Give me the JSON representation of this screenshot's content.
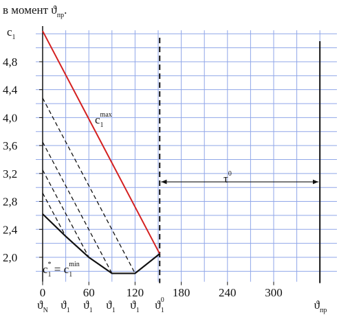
{
  "chart_data": {
    "type": "line",
    "title": [
      {
        "base": "в момент ϑ",
        "sub": "пр"
      },
      {
        "base": "."
      }
    ],
    "y_label": [
      {
        "base": "c",
        "sub": "1"
      }
    ],
    "xlim": [
      0,
      380
    ],
    "ylim": [
      1.65,
      5.25
    ],
    "xticks": [
      0,
      60,
      120,
      180,
      240,
      300
    ],
    "yticks": [
      {
        "value": 2.0,
        "label": "2,0"
      },
      {
        "value": 2.4,
        "label": "2,4"
      },
      {
        "value": 2.8,
        "label": "2,8"
      },
      {
        "value": 3.2,
        "label": "3,2"
      },
      {
        "value": 3.6,
        "label": "3,6"
      },
      {
        "value": 4.0,
        "label": "4,0"
      },
      {
        "value": 4.4,
        "label": "4,4"
      },
      {
        "value": 4.8,
        "label": "4,8"
      }
    ],
    "grid": true,
    "xgrid": [
      30,
      60,
      90,
      120,
      150,
      180,
      210,
      240,
      270,
      300,
      330,
      360
    ],
    "ygrid": [
      1.8,
      2.0,
      2.2,
      2.4,
      2.6,
      2.8,
      3.0,
      3.2,
      3.4,
      3.6,
      3.8,
      4.0,
      4.2,
      4.4,
      4.6,
      4.8,
      5.0,
      5.2
    ],
    "x_point_labels": [
      [
        {
          "base": "ϑ",
          "sub": "N"
        }
      ],
      [
        {
          "base": "ϑ",
          "sub": "1"
        }
      ],
      [
        {
          "base": "ϑ",
          "sub": "1"
        }
      ],
      [
        {
          "base": "ϑ",
          "sub": "1"
        }
      ],
      [
        {
          "base": "ϑ",
          "sub": "1"
        }
      ],
      [
        {
          "base": "ϑ",
          "sub": "1",
          "sup": "0"
        }
      ],
      [
        {
          "base": "ϑ",
          "sub": "пр"
        }
      ]
    ],
    "series": [
      {
        "color": "#d42020",
        "dash": false,
        "width": 2,
        "x": [
          0,
          152
        ],
        "values": [
          5.24,
          2.05
        ]
      },
      {
        "color": "#111111",
        "dash": false,
        "width": 2.2,
        "x": [
          0,
          30,
          60,
          90,
          120,
          152
        ],
        "values": [
          2.62,
          2.3,
          2.0,
          1.77,
          1.77,
          2.05
        ]
      },
      {
        "color": "#111111",
        "dash": true,
        "width": 1.3,
        "x": [
          0,
          120
        ],
        "values": [
          4.28,
          1.77
        ]
      },
      {
        "color": "#111111",
        "dash": true,
        "width": 1.3,
        "x": [
          0,
          90
        ],
        "values": [
          3.65,
          1.77
        ]
      },
      {
        "color": "#111111",
        "dash": true,
        "width": 1.3,
        "x": [
          0,
          60
        ],
        "values": [
          3.25,
          2.0
        ]
      },
      {
        "color": "#111111",
        "dash": true,
        "width": 1.3,
        "x": [
          0,
          30
        ],
        "values": [
          2.92,
          2.3
        ]
      }
    ],
    "vlines": [
      {
        "x": 152,
        "dash": true
      },
      {
        "x": 360,
        "dash": false
      }
    ],
    "annotations": [
      [
        {
          "base": "c",
          "sub": "1",
          "sup": "max"
        }
      ],
      [
        {
          "base": "c",
          "sub": "1",
          "sup": "*"
        },
        {
          "base": " = "
        },
        {
          "base": "c",
          "sub": "1",
          "sup": "min"
        }
      ],
      [
        {
          "base": "τ",
          "sup": "0"
        }
      ]
    ]
  }
}
